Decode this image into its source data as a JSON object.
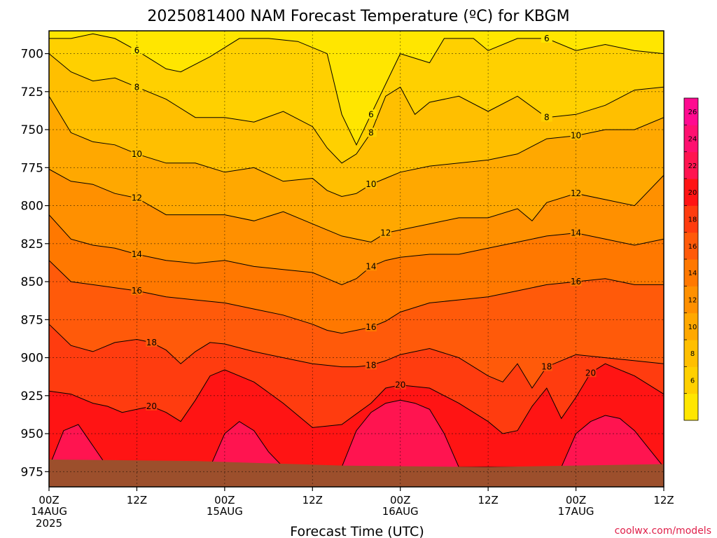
{
  "title": "2025081400 NAM Forecast Temperature (ºC) for KBGM",
  "xlabel": "Forecast Time (UTC)",
  "credit": "coolwx.com/models",
  "colors": {
    "c4": "#ffe600",
    "c6": "#ffd000",
    "c8": "#ffbf00",
    "c10": "#ffa800",
    "c12": "#ff9000",
    "c14": "#ff7800",
    "c16": "#ff5a0a",
    "c18": "#ff3c0f",
    "c20": "#ff1414",
    "c22": "#ff1450",
    "c24": "#ff1070",
    "c26": "#ff0a90",
    "ground": "#9c4f2c"
  },
  "chart_data": {
    "type": "contour",
    "title": "2025081400 NAM Forecast Temperature (ºC) for KBGM",
    "xlabel": "Forecast Time (UTC)",
    "ylabel": "",
    "y_axis": "pressure (hPa), inverted",
    "y_ticks": [
      700,
      725,
      750,
      775,
      800,
      825,
      850,
      875,
      900,
      925,
      950,
      975
    ],
    "ylim": [
      685,
      985
    ],
    "x_ticks": [
      {
        "h": 0,
        "label": "00Z",
        "sub": "14AUG",
        "sub2": "2025"
      },
      {
        "h": 12,
        "label": "12Z",
        "sub": "",
        "sub2": ""
      },
      {
        "h": 24,
        "label": "00Z",
        "sub": "15AUG",
        "sub2": ""
      },
      {
        "h": 36,
        "label": "12Z",
        "sub": "",
        "sub2": ""
      },
      {
        "h": 48,
        "label": "00Z",
        "sub": "16AUG",
        "sub2": ""
      },
      {
        "h": 60,
        "label": "12Z",
        "sub": "",
        "sub2": ""
      },
      {
        "h": 72,
        "label": "00Z",
        "sub": "17AUG",
        "sub2": ""
      },
      {
        "h": 84,
        "label": "12Z",
        "sub": "",
        "sub2": ""
      }
    ],
    "xlim": [
      0,
      84
    ],
    "grid": true,
    "colorbar_ticks": [
      6,
      8,
      10,
      12,
      14,
      16,
      18,
      20,
      22,
      24,
      26
    ],
    "contour_levels": [
      6,
      8,
      10,
      12,
      14,
      16,
      18,
      20,
      22
    ],
    "isotherms": [
      {
        "level": 6,
        "x": [
          0,
          3,
          6,
          9,
          12,
          16,
          18,
          22,
          26,
          30,
          34,
          38,
          40,
          42,
          44,
          46,
          48,
          52,
          54,
          58,
          60,
          64,
          68,
          72,
          76,
          80,
          84
        ],
        "y": [
          690,
          690,
          687,
          690,
          698,
          710,
          712,
          702,
          690,
          690,
          692,
          700,
          740,
          760,
          740,
          720,
          700,
          706,
          690,
          690,
          698,
          690,
          690,
          698,
          694,
          698,
          700
        ]
      },
      {
        "level": 8,
        "x": [
          0,
          3,
          6,
          9,
          12,
          16,
          20,
          24,
          28,
          32,
          36,
          38,
          40,
          42,
          44,
          46,
          48,
          50,
          52,
          56,
          60,
          64,
          68,
          72,
          76,
          80,
          84
        ],
        "y": [
          700,
          712,
          718,
          716,
          722,
          730,
          742,
          742,
          745,
          738,
          748,
          762,
          772,
          766,
          752,
          728,
          722,
          740,
          732,
          728,
          738,
          728,
          742,
          740,
          734,
          724,
          722
        ]
      },
      {
        "level": 10,
        "x": [
          0,
          3,
          6,
          9,
          12,
          16,
          20,
          24,
          28,
          32,
          36,
          38,
          40,
          42,
          44,
          46,
          48,
          52,
          56,
          60,
          64,
          68,
          72,
          76,
          80,
          84
        ],
        "y": [
          728,
          752,
          758,
          760,
          766,
          772,
          772,
          778,
          775,
          784,
          782,
          790,
          794,
          792,
          786,
          782,
          778,
          774,
          772,
          770,
          766,
          756,
          754,
          750,
          750,
          742
        ]
      },
      {
        "level": 12,
        "x": [
          0,
          3,
          6,
          9,
          12,
          16,
          20,
          24,
          28,
          32,
          36,
          40,
          42,
          44,
          46,
          48,
          52,
          56,
          60,
          64,
          66,
          68,
          72,
          76,
          80,
          84
        ],
        "y": [
          776,
          784,
          786,
          792,
          795,
          806,
          806,
          806,
          810,
          804,
          812,
          820,
          822,
          824,
          818,
          816,
          812,
          808,
          808,
          802,
          810,
          798,
          792,
          796,
          800,
          780
        ]
      },
      {
        "level": 14,
        "x": [
          0,
          3,
          6,
          9,
          12,
          16,
          20,
          24,
          28,
          32,
          36,
          38,
          40,
          42,
          44,
          46,
          48,
          52,
          56,
          60,
          64,
          68,
          72,
          76,
          80,
          84
        ],
        "y": [
          806,
          822,
          826,
          828,
          832,
          836,
          838,
          836,
          840,
          842,
          844,
          848,
          852,
          848,
          840,
          836,
          834,
          832,
          832,
          828,
          824,
          820,
          818,
          822,
          826,
          822
        ]
      },
      {
        "level": 16,
        "x": [
          0,
          3,
          6,
          9,
          12,
          16,
          20,
          24,
          28,
          32,
          36,
          38,
          40,
          42,
          44,
          46,
          48,
          52,
          56,
          60,
          64,
          68,
          72,
          76,
          80,
          84
        ],
        "y": [
          836,
          850,
          852,
          854,
          856,
          860,
          862,
          864,
          868,
          872,
          878,
          882,
          884,
          882,
          880,
          876,
          870,
          864,
          862,
          860,
          856,
          852,
          850,
          848,
          852,
          852
        ]
      },
      {
        "level": 18,
        "x": [
          0,
          3,
          6,
          9,
          12,
          14,
          16,
          18,
          20,
          22,
          24,
          28,
          32,
          36,
          40,
          42,
          44,
          46,
          48,
          52,
          56,
          60,
          62,
          64,
          66,
          68,
          72,
          76,
          80,
          84
        ],
        "y": [
          878,
          892,
          896,
          890,
          888,
          890,
          895,
          904,
          896,
          890,
          891,
          896,
          900,
          904,
          906,
          906,
          905,
          902,
          898,
          894,
          900,
          912,
          916,
          904,
          920,
          906,
          898,
          900,
          902,
          904
        ]
      },
      {
        "level": 20,
        "x": [
          0,
          3,
          6,
          8,
          10,
          12,
          14,
          16,
          18,
          20,
          22,
          24,
          28,
          32,
          36,
          40,
          44,
          46,
          48,
          52,
          56,
          60,
          62,
          64,
          66,
          68,
          70,
          72,
          74,
          76,
          78,
          80,
          82,
          84
        ],
        "y": [
          922,
          924,
          930,
          932,
          936,
          934,
          932,
          936,
          942,
          928,
          912,
          908,
          916,
          930,
          946,
          944,
          930,
          920,
          918,
          920,
          930,
          942,
          950,
          948,
          932,
          920,
          940,
          926,
          910,
          904,
          908,
          912,
          918,
          924
        ]
      },
      {
        "level": 22,
        "x": [
          0,
          2,
          4,
          6,
          8,
          22,
          24,
          26,
          28,
          30,
          32,
          40,
          42,
          44,
          46,
          48,
          50,
          52,
          54,
          56,
          70,
          72,
          74,
          76,
          78,
          80,
          82,
          84
        ],
        "y": [
          972,
          948,
          944,
          958,
          972,
          972,
          950,
          942,
          948,
          962,
          972,
          972,
          948,
          936,
          930,
          928,
          930,
          934,
          950,
          972,
          972,
          950,
          942,
          938,
          940,
          948,
          960,
          972
        ]
      }
    ]
  }
}
